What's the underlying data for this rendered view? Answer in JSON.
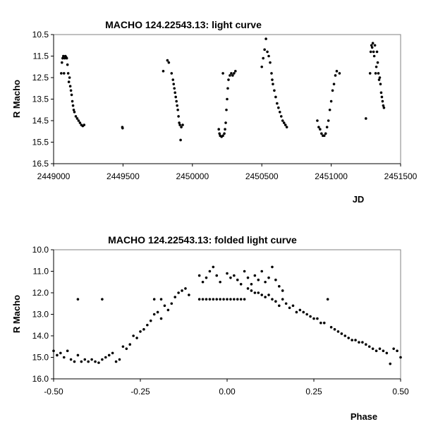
{
  "chart_data": [
    {
      "type": "scatter",
      "title": "MACHO 124.22543.13: light curve",
      "xlabel": "JD",
      "ylabel": "R Macho",
      "xlim": [
        2449000,
        2451500
      ],
      "ylim": [
        10.5,
        16.5
      ],
      "y_inverted": true,
      "grid": false,
      "xticks": [
        "2449000",
        "2449500",
        "2450000",
        "2450500",
        "2451000",
        "2451500"
      ],
      "yticks": [
        "10.5",
        "11.5",
        "12.5",
        "13.5",
        "14.5",
        "15.5",
        "16.5"
      ],
      "points": [
        [
          2449055,
          12.3
        ],
        [
          2449060,
          11.8
        ],
        [
          2449065,
          11.6
        ],
        [
          2449070,
          11.5
        ],
        [
          2449075,
          12.3
        ],
        [
          2449080,
          11.6
        ],
        [
          2449085,
          11.5
        ],
        [
          2449090,
          11.55
        ],
        [
          2449095,
          11.6
        ],
        [
          2449100,
          11.9
        ],
        [
          2449105,
          12.3
        ],
        [
          2449110,
          12.7
        ],
        [
          2449115,
          12.5
        ],
        [
          2449120,
          12.9
        ],
        [
          2449125,
          13.1
        ],
        [
          2449130,
          13.3
        ],
        [
          2449135,
          13.6
        ],
        [
          2449140,
          13.8
        ],
        [
          2449145,
          14.0
        ],
        [
          2449150,
          14.1
        ],
        [
          2449160,
          14.3
        ],
        [
          2449170,
          14.4
        ],
        [
          2449180,
          14.5
        ],
        [
          2449190,
          14.6
        ],
        [
          2449200,
          14.7
        ],
        [
          2449210,
          14.75
        ],
        [
          2449220,
          14.7
        ],
        [
          2449495,
          14.8
        ],
        [
          2449497,
          14.85
        ],
        [
          2449790,
          12.2
        ],
        [
          2449820,
          11.7
        ],
        [
          2449830,
          11.8
        ],
        [
          2449850,
          12.3
        ],
        [
          2449860,
          12.6
        ],
        [
          2449865,
          12.8
        ],
        [
          2449870,
          13.0
        ],
        [
          2449875,
          13.2
        ],
        [
          2449880,
          13.4
        ],
        [
          2449885,
          13.6
        ],
        [
          2449890,
          13.8
        ],
        [
          2449895,
          14.0
        ],
        [
          2449900,
          14.3
        ],
        [
          2449905,
          14.6
        ],
        [
          2449910,
          14.7
        ],
        [
          2449915,
          15.4
        ],
        [
          2449920,
          14.8
        ],
        [
          2449930,
          14.7
        ],
        [
          2450190,
          14.9
        ],
        [
          2450195,
          15.1
        ],
        [
          2450200,
          15.2
        ],
        [
          2450210,
          15.25
        ],
        [
          2450220,
          15.2
        ],
        [
          2450230,
          15.1
        ],
        [
          2450235,
          14.9
        ],
        [
          2450240,
          14.6
        ],
        [
          2450245,
          14.0
        ],
        [
          2450250,
          13.5
        ],
        [
          2450255,
          13.0
        ],
        [
          2450260,
          12.6
        ],
        [
          2450270,
          12.4
        ],
        [
          2450280,
          12.3
        ],
        [
          2450290,
          12.4
        ],
        [
          2450300,
          12.3
        ],
        [
          2450310,
          12.2
        ],
        [
          2450220,
          12.3
        ],
        [
          2450500,
          12.0
        ],
        [
          2450510,
          11.6
        ],
        [
          2450520,
          11.2
        ],
        [
          2450530,
          10.7
        ],
        [
          2450540,
          11.3
        ],
        [
          2450550,
          11.5
        ],
        [
          2450560,
          11.8
        ],
        [
          2450570,
          12.3
        ],
        [
          2450575,
          12.6
        ],
        [
          2450580,
          12.8
        ],
        [
          2450590,
          13.1
        ],
        [
          2450600,
          13.4
        ],
        [
          2450610,
          13.7
        ],
        [
          2450620,
          13.9
        ],
        [
          2450630,
          14.1
        ],
        [
          2450640,
          14.3
        ],
        [
          2450650,
          14.5
        ],
        [
          2450660,
          14.6
        ],
        [
          2450670,
          14.7
        ],
        [
          2450680,
          14.8
        ],
        [
          2450900,
          14.5
        ],
        [
          2450910,
          14.8
        ],
        [
          2450920,
          14.9
        ],
        [
          2450930,
          15.1
        ],
        [
          2450940,
          15.2
        ],
        [
          2450950,
          15.2
        ],
        [
          2450960,
          15.1
        ],
        [
          2450970,
          14.8
        ],
        [
          2450980,
          14.5
        ],
        [
          2450990,
          14.0
        ],
        [
          2451000,
          13.6
        ],
        [
          2451010,
          13.1
        ],
        [
          2451020,
          12.8
        ],
        [
          2451030,
          12.4
        ],
        [
          2451040,
          12.2
        ],
        [
          2451060,
          12.3
        ],
        [
          2451250,
          14.4
        ],
        [
          2451280,
          12.3
        ],
        [
          2451285,
          11.3
        ],
        [
          2451290,
          11.0
        ],
        [
          2451295,
          11.1
        ],
        [
          2451300,
          10.9
        ],
        [
          2451305,
          11.3
        ],
        [
          2451310,
          11.5
        ],
        [
          2451315,
          11.0
        ],
        [
          2451320,
          12.3
        ],
        [
          2451325,
          12.0
        ],
        [
          2451330,
          11.3
        ],
        [
          2451335,
          11.8
        ],
        [
          2451340,
          12.3
        ],
        [
          2451345,
          12.6
        ],
        [
          2451350,
          12.5
        ],
        [
          2451355,
          12.8
        ],
        [
          2451360,
          13.2
        ],
        [
          2451365,
          13.4
        ],
        [
          2451370,
          13.6
        ],
        [
          2451375,
          13.8
        ],
        [
          2451380,
          13.9
        ]
      ]
    },
    {
      "type": "scatter",
      "title": "MACHO 124.22543.13: folded light curve",
      "xlabel": "Phase",
      "ylabel": "R Macho",
      "xlim": [
        -0.5,
        0.5
      ],
      "ylim": [
        10.0,
        16.0
      ],
      "y_inverted": true,
      "grid": false,
      "xticks": [
        "-0.50",
        "-0.25",
        "0.00",
        "0.25",
        "0.50"
      ],
      "yticks": [
        "10.0",
        "11.0",
        "12.0",
        "13.0",
        "14.0",
        "15.0",
        "16.0"
      ],
      "points": [
        [
          -0.5,
          14.7
        ],
        [
          -0.49,
          14.9
        ],
        [
          -0.48,
          14.8
        ],
        [
          -0.47,
          15.0
        ],
        [
          -0.46,
          14.7
        ],
        [
          -0.45,
          15.1
        ],
        [
          -0.44,
          15.2
        ],
        [
          -0.43,
          14.9
        ],
        [
          -0.42,
          15.2
        ],
        [
          -0.41,
          15.1
        ],
        [
          -0.4,
          15.2
        ],
        [
          -0.39,
          15.1
        ],
        [
          -0.38,
          15.2
        ],
        [
          -0.37,
          15.25
        ],
        [
          -0.36,
          15.1
        ],
        [
          -0.35,
          15.0
        ],
        [
          -0.34,
          14.9
        ],
        [
          -0.33,
          14.8
        ],
        [
          -0.32,
          15.2
        ],
        [
          -0.31,
          15.1
        ],
        [
          -0.3,
          14.5
        ],
        [
          -0.29,
          14.6
        ],
        [
          -0.28,
          14.4
        ],
        [
          -0.27,
          14.0
        ],
        [
          -0.26,
          14.1
        ],
        [
          -0.25,
          13.8
        ],
        [
          -0.24,
          13.7
        ],
        [
          -0.23,
          13.5
        ],
        [
          -0.22,
          13.3
        ],
        [
          -0.21,
          13.0
        ],
        [
          -0.2,
          12.9
        ],
        [
          -0.19,
          13.2
        ],
        [
          -0.18,
          12.6
        ],
        [
          -0.17,
          12.8
        ],
        [
          -0.16,
          12.5
        ],
        [
          -0.15,
          12.2
        ],
        [
          -0.14,
          12.0
        ],
        [
          -0.13,
          11.9
        ],
        [
          -0.12,
          11.8
        ],
        [
          -0.11,
          12.1
        ],
        [
          -0.43,
          12.3
        ],
        [
          -0.36,
          12.3
        ],
        [
          -0.21,
          12.3
        ],
        [
          -0.19,
          12.3
        ],
        [
          -0.08,
          12.3
        ],
        [
          -0.07,
          12.3
        ],
        [
          -0.06,
          12.3
        ],
        [
          -0.05,
          12.3
        ],
        [
          -0.04,
          12.3
        ],
        [
          -0.03,
          12.3
        ],
        [
          -0.02,
          12.3
        ],
        [
          -0.01,
          12.3
        ],
        [
          0.0,
          12.3
        ],
        [
          0.01,
          12.3
        ],
        [
          0.02,
          12.3
        ],
        [
          0.03,
          12.3
        ],
        [
          0.04,
          12.3
        ],
        [
          0.05,
          12.3
        ],
        [
          -0.08,
          11.2
        ],
        [
          -0.07,
          11.5
        ],
        [
          -0.06,
          11.3
        ],
        [
          -0.05,
          11.0
        ],
        [
          -0.04,
          10.8
        ],
        [
          -0.03,
          11.2
        ],
        [
          -0.02,
          11.5
        ],
        [
          0.0,
          11.1
        ],
        [
          0.01,
          11.3
        ],
        [
          0.02,
          11.2
        ],
        [
          0.03,
          11.4
        ],
        [
          0.04,
          11.6
        ],
        [
          0.05,
          11.0
        ],
        [
          0.06,
          11.3
        ],
        [
          0.07,
          11.6
        ],
        [
          0.08,
          11.2
        ],
        [
          0.09,
          11.4
        ],
        [
          0.1,
          11.0
        ],
        [
          0.11,
          11.5
        ],
        [
          0.12,
          11.3
        ],
        [
          0.13,
          10.8
        ],
        [
          0.14,
          11.4
        ],
        [
          0.15,
          11.7
        ],
        [
          0.16,
          11.9
        ],
        [
          0.06,
          11.8
        ],
        [
          0.07,
          11.9
        ],
        [
          0.08,
          12.0
        ],
        [
          0.09,
          12.0
        ],
        [
          0.1,
          12.1
        ],
        [
          0.11,
          12.2
        ],
        [
          0.12,
          12.1
        ],
        [
          0.13,
          12.3
        ],
        [
          0.14,
          12.4
        ],
        [
          0.15,
          12.6
        ],
        [
          0.16,
          12.3
        ],
        [
          0.17,
          12.5
        ],
        [
          0.18,
          12.7
        ],
        [
          0.19,
          12.6
        ],
        [
          0.2,
          12.9
        ],
        [
          0.21,
          12.8
        ],
        [
          0.22,
          12.9
        ],
        [
          0.23,
          13.0
        ],
        [
          0.24,
          13.1
        ],
        [
          0.25,
          13.2
        ],
        [
          0.26,
          13.2
        ],
        [
          0.27,
          13.4
        ],
        [
          0.28,
          13.4
        ],
        [
          0.29,
          12.3
        ],
        [
          0.3,
          13.6
        ],
        [
          0.31,
          13.7
        ],
        [
          0.32,
          13.8
        ],
        [
          0.33,
          13.9
        ],
        [
          0.34,
          14.0
        ],
        [
          0.35,
          14.1
        ],
        [
          0.36,
          14.2
        ],
        [
          0.37,
          14.2
        ],
        [
          0.38,
          14.3
        ],
        [
          0.39,
          14.3
        ],
        [
          0.4,
          14.4
        ],
        [
          0.41,
          14.5
        ],
        [
          0.42,
          14.6
        ],
        [
          0.43,
          14.7
        ],
        [
          0.44,
          14.6
        ],
        [
          0.45,
          14.7
        ],
        [
          0.46,
          14.8
        ],
        [
          0.47,
          15.3
        ],
        [
          0.48,
          14.6
        ],
        [
          0.49,
          14.7
        ],
        [
          0.5,
          15.0
        ]
      ]
    }
  ]
}
